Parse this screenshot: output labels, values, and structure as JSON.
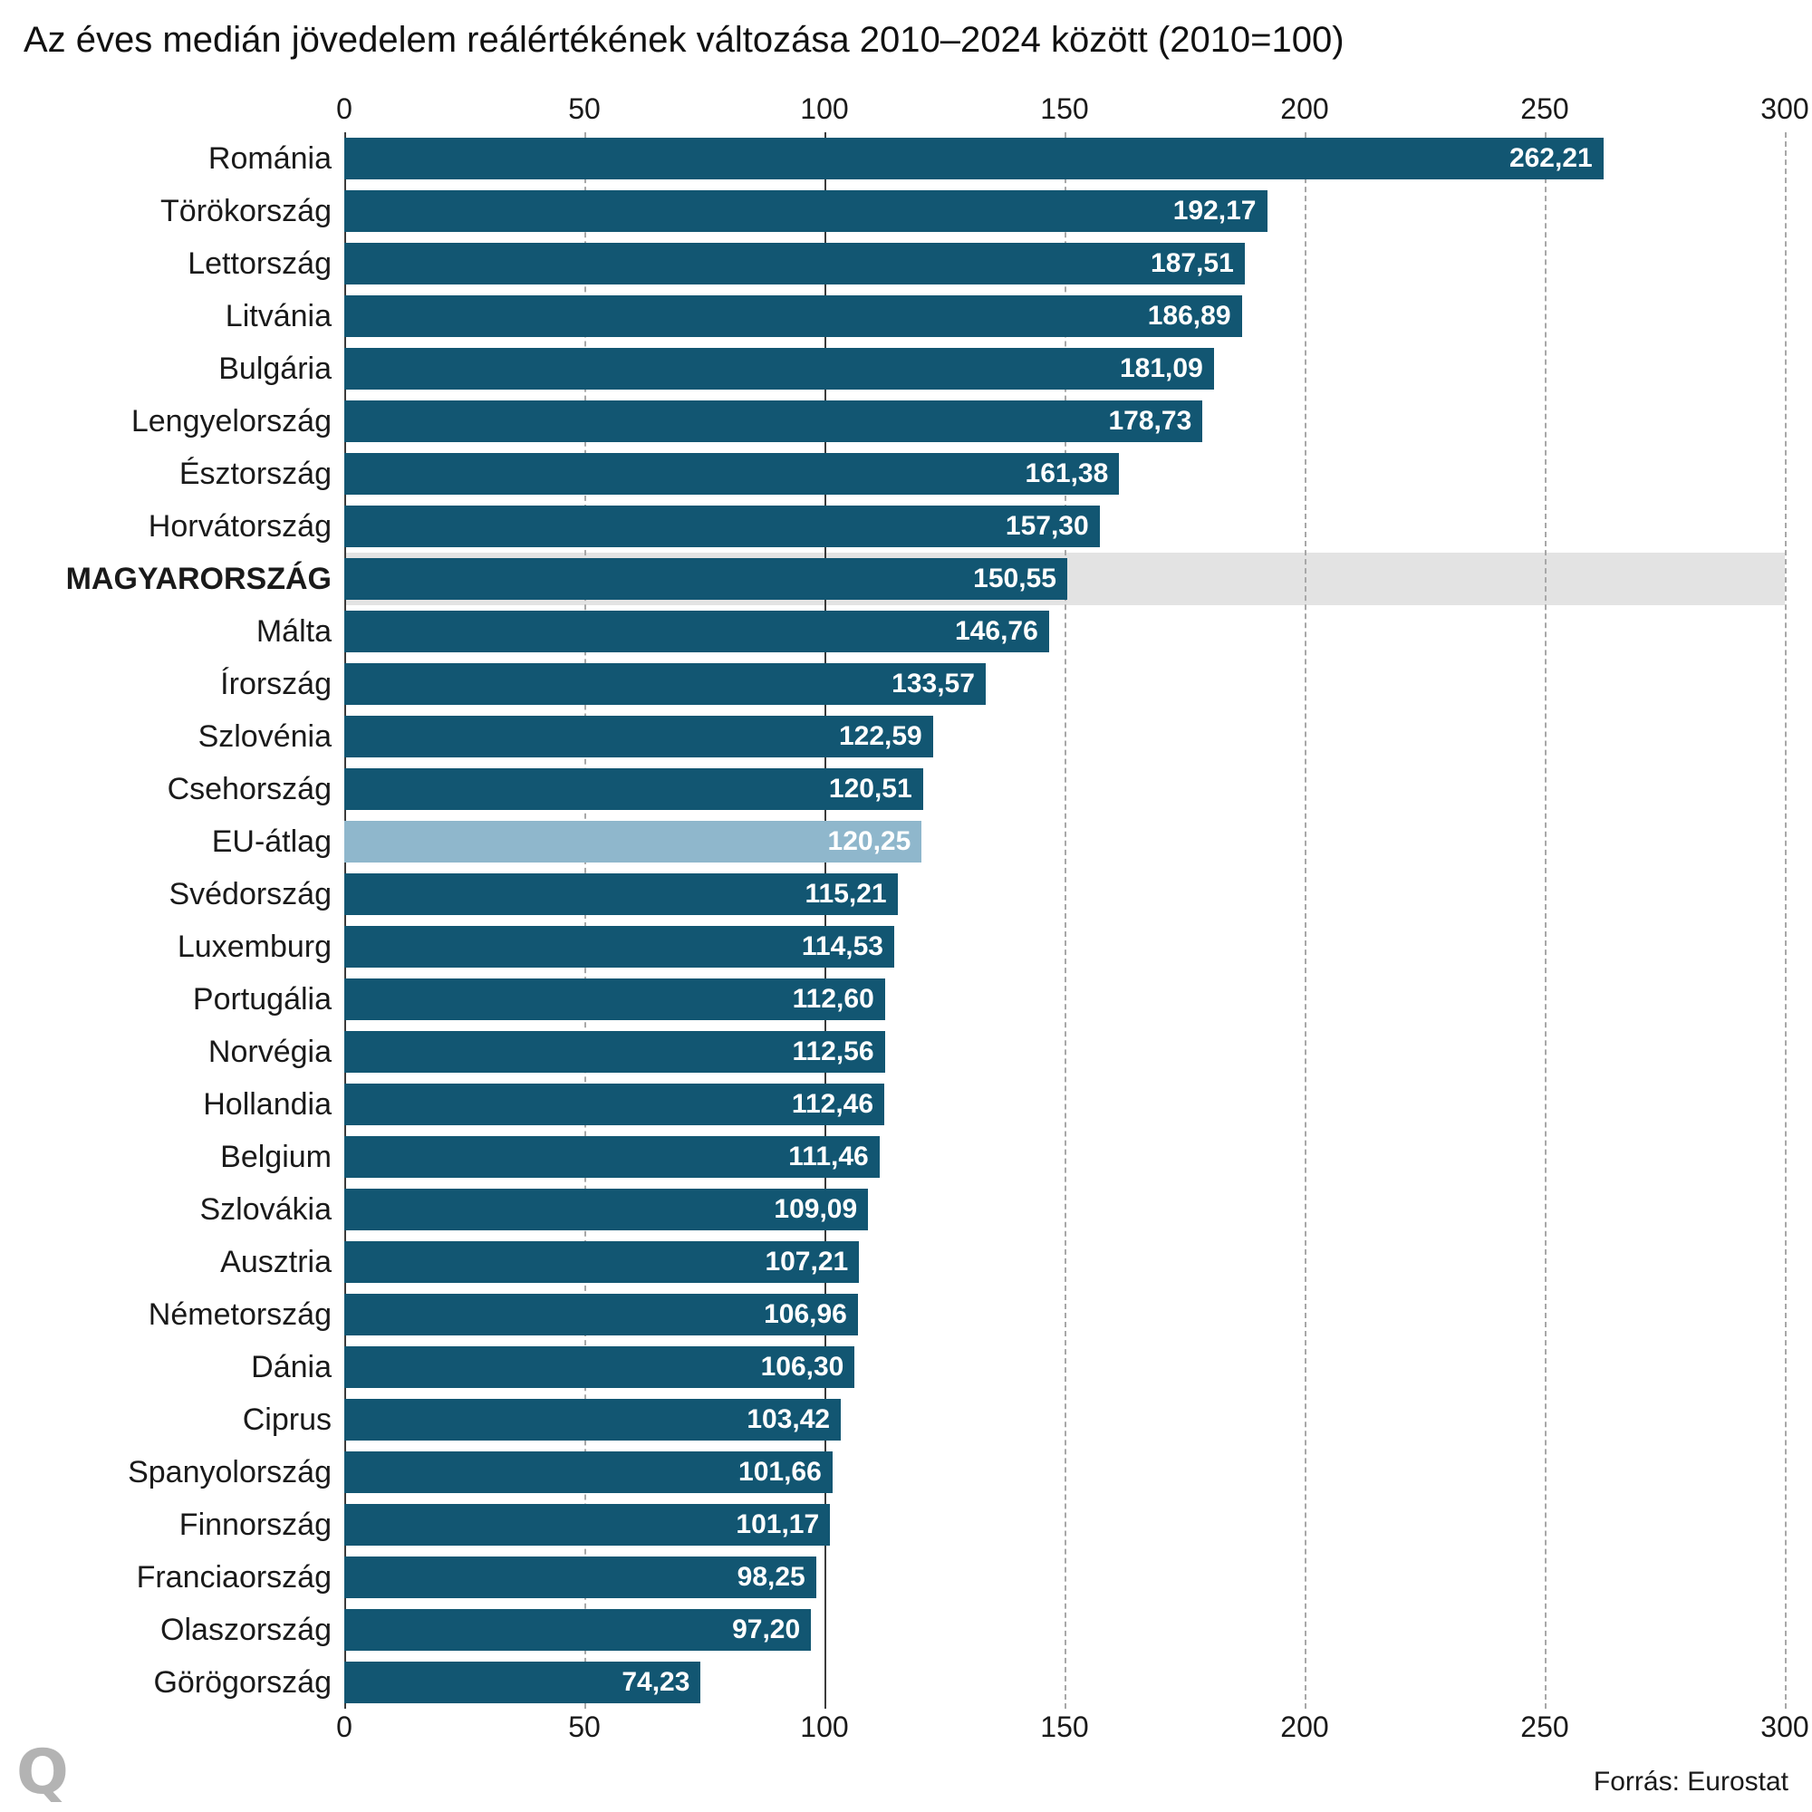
{
  "title": "Az éves medián jövedelem reálértékének változása 2010–2024 között (2010=100)",
  "source": "Forrás: Eurostat",
  "logo": "Q",
  "chart_data": {
    "type": "bar",
    "orientation": "horizontal",
    "title": "Az éves medián jövedelem reálértékének változása 2010–2024 között (2010=100)",
    "xlabel": "",
    "ylabel": "",
    "xlim": [
      0,
      300
    ],
    "ticks": [
      0,
      50,
      100,
      150,
      200,
      250,
      300
    ],
    "reference_line": 100,
    "grid": "dashed-vertical",
    "bar_color": "#125672",
    "eu_bar_color": "#8fb7cc",
    "highlight_band_color": "#e3e3e3",
    "highlight_category": "MAGYARORSZÁG",
    "light_category": "EU-átlag",
    "categories": [
      "Románia",
      "Törökország",
      "Lettország",
      "Litvánia",
      "Bulgária",
      "Lengyelország",
      "Észtország",
      "Horvátország",
      "MAGYARORSZÁG",
      "Málta",
      "Írország",
      "Szlovénia",
      "Csehország",
      "EU-átlag",
      "Svédország",
      "Luxemburg",
      "Portugália",
      "Norvégia",
      "Hollandia",
      "Belgium",
      "Szlovákia",
      "Ausztria",
      "Németország",
      "Dánia",
      "Ciprus",
      "Spanyolország",
      "Finnország",
      "Franciaország",
      "Olaszország",
      "Görögország"
    ],
    "values": [
      262.21,
      192.17,
      187.51,
      186.89,
      181.09,
      178.73,
      161.38,
      157.3,
      150.55,
      146.76,
      133.57,
      122.59,
      120.51,
      120.25,
      115.21,
      114.53,
      112.6,
      112.56,
      112.46,
      111.46,
      109.09,
      107.21,
      106.96,
      106.3,
      103.42,
      101.66,
      101.17,
      98.25,
      97.2,
      74.23
    ],
    "value_labels": [
      "262,21",
      "192,17",
      "187,51",
      "186,89",
      "181,09",
      "178,73",
      "161,38",
      "157,30",
      "150,55",
      "146,76",
      "133,57",
      "122,59",
      "120,51",
      "120,25",
      "115,21",
      "114,53",
      "112,60",
      "112,56",
      "112,46",
      "111,46",
      "109,09",
      "107,21",
      "106,96",
      "106,30",
      "103,42",
      "101,66",
      "101,17",
      "98,25",
      "97,20",
      "74,23"
    ]
  }
}
